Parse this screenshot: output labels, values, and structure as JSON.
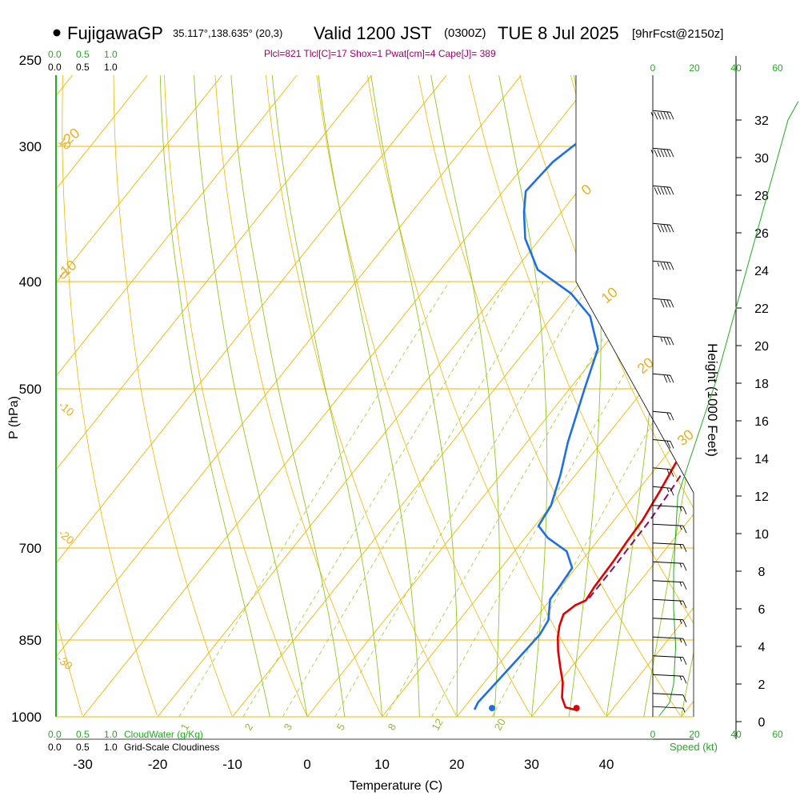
{
  "header": {
    "station": "FujigawaGP",
    "coords": "35.117°,138.635° (20,3)",
    "valid": "Valid 1200 JST",
    "utc": "(0300Z)",
    "date": "TUE 8 Jul 2025",
    "fcst": "[9hrFcst@2150z]",
    "params": "Plcl=821 Tlcl[C]=17 Shox=1 Pwat[cm]=4 Cape[J]= 389"
  },
  "axes": {
    "ylabel": "P (hPa)",
    "xlabel": "Temperature (C)",
    "height_label": "Height (1000 Feet)",
    "speed_label": "Speed (kt)",
    "cloudwater_label": "CloudWater (g/Kg)",
    "cloudiness_label": "Grid-Scale Cloudiness",
    "cloud_scale": [
      "0.0",
      "0.5",
      "1.0"
    ]
  },
  "chart_data": {
    "type": "line",
    "title": "FujigawaGP Valid 1200 JST (0300Z) TUE 8 Jul 2025",
    "xlabel": "Temperature (C)",
    "ylabel": "P (hPa)",
    "xlim": [
      -35,
      45
    ],
    "ylim": [
      1000,
      250
    ],
    "yscale": "log",
    "pressure_ticks": [
      250,
      300,
      400,
      500,
      700,
      850,
      1000
    ],
    "temp_ticks": [
      -30,
      -20,
      -10,
      0,
      10,
      20,
      30,
      40
    ],
    "height_ticks_kft": [
      0,
      2,
      4,
      6,
      8,
      10,
      12,
      14,
      16,
      18,
      20,
      22,
      24,
      26,
      28,
      30,
      32
    ],
    "speed_ticks_kt": [
      0,
      20,
      40,
      60
    ],
    "isotherm_labels": [
      "-20",
      "-10",
      "0",
      "10",
      "20",
      "30"
    ],
    "dry_adiabat_labels": [
      "10",
      "0",
      "-10",
      "-20",
      "-30"
    ],
    "mixing_ratio_labels": [
      "1",
      "2",
      "3",
      "5",
      "8",
      "12",
      "20"
    ],
    "series": [
      {
        "name": "Temperature",
        "color": "#e00000",
        "style": "solid",
        "points": [
          [
            35.0,
            985
          ],
          [
            33.5,
            980
          ],
          [
            32.0,
            960
          ],
          [
            30.5,
            930
          ],
          [
            28.5,
            900
          ],
          [
            26.5,
            870
          ],
          [
            25.0,
            845
          ],
          [
            24.0,
            825
          ],
          [
            23.3,
            805
          ],
          [
            23.9,
            790
          ],
          [
            24.8,
            782
          ],
          [
            24.5,
            760
          ],
          [
            24.3,
            720
          ],
          [
            24.0,
            690
          ],
          [
            23.8,
            660
          ],
          [
            23.0,
            620
          ],
          [
            22.0,
            580
          ],
          [
            20.8,
            540
          ],
          [
            19.5,
            500
          ],
          [
            18.2,
            460
          ],
          [
            17.0,
            425
          ],
          [
            16.0,
            395
          ],
          [
            14.2,
            360
          ],
          [
            12.6,
            330
          ],
          [
            11.2,
            300
          ],
          [
            9.8,
            275
          ],
          [
            9.0,
            262
          ]
        ]
      },
      {
        "name": "Dew Point",
        "color": "#1e6fe6",
        "style": "solid",
        "points": [
          [
            21.6,
            985
          ],
          [
            21.3,
            970
          ],
          [
            21.6,
            930
          ],
          [
            22.0,
            880
          ],
          [
            22.3,
            840
          ],
          [
            21.9,
            815
          ],
          [
            19.9,
            780
          ],
          [
            19.8,
            760
          ],
          [
            19.5,
            730
          ],
          [
            17.0,
            705
          ],
          [
            13.0,
            685
          ],
          [
            10.5,
            668
          ],
          [
            10.0,
            640
          ],
          [
            8.0,
            600
          ],
          [
            5.5,
            560
          ],
          [
            2.0,
            500
          ],
          [
            -0.5,
            460
          ],
          [
            -5.0,
            430
          ],
          [
            -10.0,
            410
          ],
          [
            -17.0,
            390
          ],
          [
            -22.0,
            365
          ],
          [
            -25.0,
            345
          ],
          [
            -27.0,
            330
          ],
          [
            -26.5,
            310
          ],
          [
            -25.0,
            295
          ],
          [
            -23.0,
            280
          ],
          [
            -20.5,
            262
          ]
        ]
      },
      {
        "name": "Parcel",
        "color": "#8a1060",
        "style": "dashed",
        "points": [
          [
            25.0,
            778
          ],
          [
            25.0,
            760
          ],
          [
            25.0,
            730
          ],
          [
            24.9,
            700
          ],
          [
            24.8,
            660
          ],
          [
            24.4,
            620
          ],
          [
            23.8,
            580
          ],
          [
            23.0,
            540
          ],
          [
            21.9,
            500
          ],
          [
            20.5,
            460
          ],
          [
            18.8,
            420
          ],
          [
            16.8,
            380
          ],
          [
            14.6,
            340
          ],
          [
            12.6,
            305
          ],
          [
            11.0,
            280
          ],
          [
            10.0,
            265
          ]
        ]
      }
    ],
    "surface_markers": [
      {
        "name": "Surface Temperature",
        "color": "#e00000",
        "t": 35.5,
        "p": 990
      },
      {
        "name": "Surface Dew Point",
        "color": "#1e6fe6",
        "t": 24.2,
        "p": 990
      }
    ],
    "wind_barbs": [
      {
        "h_kft": 32.5,
        "speed_kt": 65
      },
      {
        "h_kft": 30.5,
        "speed_kt": 65
      },
      {
        "h_kft": 28.5,
        "speed_kt": 60
      },
      {
        "h_kft": 26.5,
        "speed_kt": 50
      },
      {
        "h_kft": 24.5,
        "speed_kt": 45
      },
      {
        "h_kft": 22.5,
        "speed_kt": 40
      },
      {
        "h_kft": 20.5,
        "speed_kt": 35
      },
      {
        "h_kft": 18.5,
        "speed_kt": 30
      },
      {
        "h_kft": 16.5,
        "speed_kt": 20
      },
      {
        "h_kft": 15.0,
        "speed_kt": 20
      },
      {
        "h_kft": 13.5,
        "speed_kt": 15
      },
      {
        "h_kft": 12.5,
        "speed_kt": 15
      },
      {
        "h_kft": 11.5,
        "speed_kt": 15
      },
      {
        "h_kft": 10.5,
        "speed_kt": 15
      },
      {
        "h_kft": 9.5,
        "speed_kt": 15
      },
      {
        "h_kft": 8.5,
        "speed_kt": 15
      },
      {
        "h_kft": 7.5,
        "speed_kt": 15
      },
      {
        "h_kft": 6.5,
        "speed_kt": 15
      },
      {
        "h_kft": 5.5,
        "speed_kt": 15
      },
      {
        "h_kft": 4.5,
        "speed_kt": 15
      },
      {
        "h_kft": 3.5,
        "speed_kt": 15
      },
      {
        "h_kft": 2.5,
        "speed_kt": 15
      },
      {
        "h_kft": 1.5,
        "speed_kt": 10
      },
      {
        "h_kft": 0.8,
        "speed_kt": 5
      }
    ],
    "speed_profile": [
      [
        0.3,
        3
      ],
      [
        1,
        8
      ],
      [
        2,
        10
      ],
      [
        4,
        11
      ],
      [
        6,
        10
      ],
      [
        8,
        10
      ],
      [
        10,
        11
      ],
      [
        12,
        12
      ],
      [
        14,
        18
      ],
      [
        16,
        24
      ],
      [
        18,
        30
      ],
      [
        20,
        35
      ],
      [
        22,
        40
      ],
      [
        24,
        45
      ],
      [
        26,
        50
      ],
      [
        28,
        55
      ],
      [
        30,
        60
      ],
      [
        32,
        65
      ],
      [
        33,
        70
      ]
    ]
  }
}
